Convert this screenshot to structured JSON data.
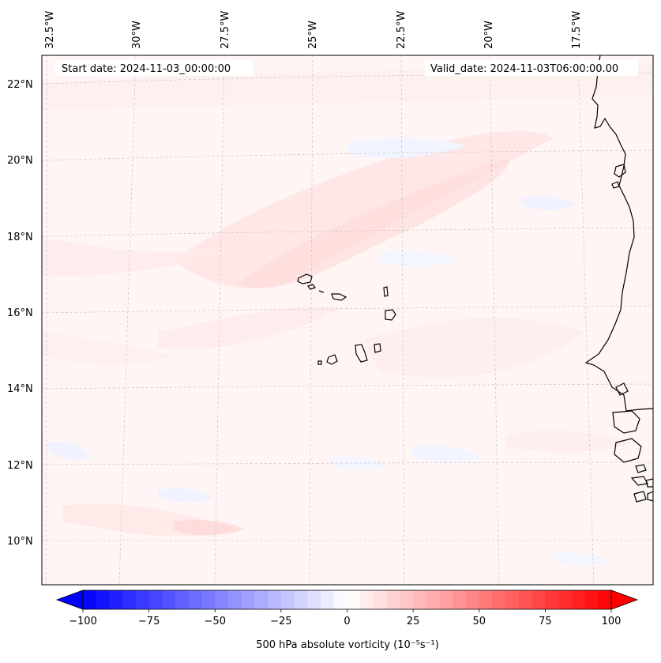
{
  "header": {
    "start_date": "Start date: 2024-11-03_00:00:00",
    "valid_date": "Valid_date: 2024-11-03T06:00:00.00"
  },
  "lon_ticks": [
    "32.5°W",
    "30°W",
    "27.5°W",
    "25°W",
    "22.5°W",
    "20°W",
    "17.5°W"
  ],
  "lat_ticks": [
    "22°N",
    "20°N",
    "18°N",
    "16°N",
    "14°N",
    "12°N",
    "10°N"
  ],
  "colorbar": {
    "ticks": [
      "−100",
      "−75",
      "−50",
      "−25",
      "0",
      "25",
      "50",
      "75",
      "100"
    ],
    "min": -100,
    "max": 100,
    "label": "500 hPa absolute vorticity (10⁻⁵s⁻¹)",
    "neg_color": "#0000ff",
    "pos_color": "#ff0000",
    "mid_color": "#ffffff"
  },
  "map": {
    "background_color": "#fff5f5",
    "coastline_color": "#000000"
  }
}
